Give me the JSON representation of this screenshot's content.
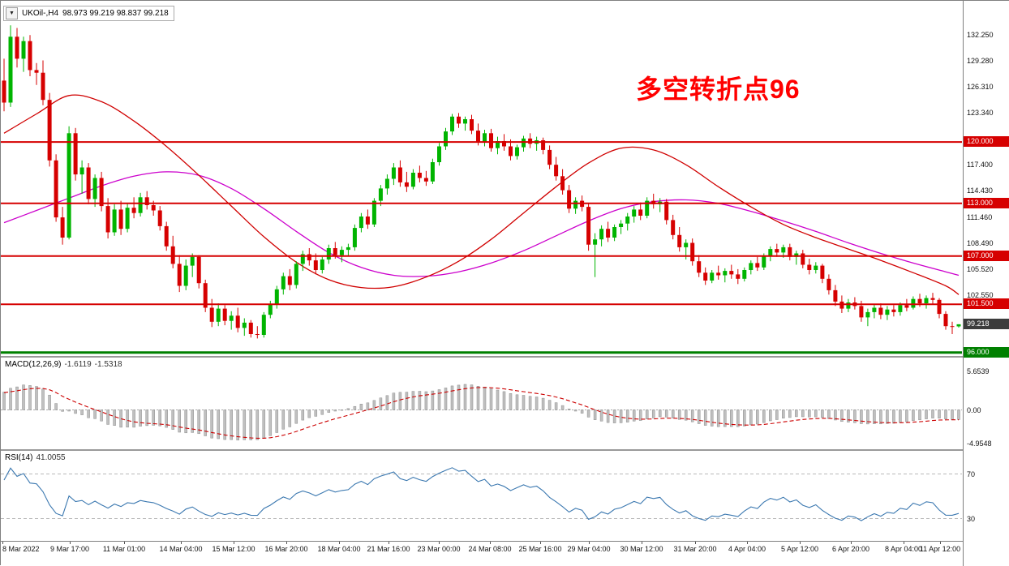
{
  "window": {
    "legend_symbol": "UKOil-,H4",
    "legend_ohlc": "98.973 99.219 98.837 99.218"
  },
  "annotation": {
    "text": "多空转折点96",
    "color": "#ff0000"
  },
  "chart_data": {
    "type": "candlestick",
    "title": "UKOil- H4 chart with MACD and RSI",
    "symbol": "UKOil-",
    "timeframe": "H4",
    "ohlc_current": {
      "open": 98.973,
      "high": 99.219,
      "low": 98.837,
      "close": 99.218
    },
    "price_range": [
      95.6,
      136.1
    ],
    "colors": {
      "bull": "#00b400",
      "bear": "#d60000",
      "ma_fast": "#d00000",
      "ma_slow": "#cc00cc",
      "hline": "#d60000",
      "support": "#008000",
      "bid_badge": "#3c3c3c",
      "hline_badge": "#d60000",
      "support_badge": "#008000",
      "macd_hist": "#c0c0c0",
      "macd_hist_border": "#8d8d8d",
      "macd_signal": "#cc0000",
      "rsi_line": "#3b78b0",
      "level_dash": "#b8b8b8",
      "annotation": "#ff0000"
    },
    "price_axis_labels": [
      {
        "v": 132.25,
        "t": "132.250"
      },
      {
        "v": 129.28,
        "t": "129.280"
      },
      {
        "v": 126.31,
        "t": "126.310"
      },
      {
        "v": 123.34,
        "t": "123.340"
      },
      {
        "v": 117.4,
        "t": "117.400"
      },
      {
        "v": 114.43,
        "t": "114.430"
      },
      {
        "v": 111.46,
        "t": "111.460"
      },
      {
        "v": 108.49,
        "t": "108.490"
      },
      {
        "v": 105.52,
        "t": "105.520"
      },
      {
        "v": 102.55,
        "t": "102.550"
      }
    ],
    "hlines": [
      {
        "v": 120.0,
        "t": "120.000"
      },
      {
        "v": 113.0,
        "t": "113.000"
      },
      {
        "v": 107.0,
        "t": "107.000"
      },
      {
        "v": 101.5,
        "t": "101.500"
      }
    ],
    "support_line": {
      "v": 96.0,
      "t": "96.000"
    },
    "bid": {
      "v": 99.218,
      "t": "99.218"
    },
    "candles": [
      [
        127.0,
        129.5,
        123.5,
        124.5
      ],
      [
        124.5,
        133.3,
        124.0,
        132.0
      ],
      [
        132.0,
        133.0,
        128.5,
        129.5
      ],
      [
        129.5,
        132.0,
        128.0,
        131.5
      ],
      [
        131.5,
        132.2,
        127.5,
        128.2
      ],
      [
        128.2,
        129.0,
        126.5,
        127.9
      ],
      [
        127.9,
        129.3,
        124.2,
        124.8
      ],
      [
        124.8,
        125.6,
        117.2,
        117.9
      ],
      [
        117.9,
        118.6,
        110.9,
        111.4
      ],
      [
        111.4,
        112.6,
        108.3,
        109.1
      ],
      [
        109.1,
        121.8,
        108.9,
        121.0
      ],
      [
        121.0,
        121.6,
        115.6,
        116.3
      ],
      [
        116.3,
        117.9,
        114.1,
        117.1
      ],
      [
        117.1,
        117.6,
        112.9,
        113.5
      ],
      [
        113.5,
        116.3,
        112.6,
        115.9
      ],
      [
        115.9,
        116.6,
        112.1,
        112.7
      ],
      [
        112.7,
        113.6,
        109.0,
        109.7
      ],
      [
        109.7,
        112.9,
        109.3,
        112.3
      ],
      [
        112.3,
        113.3,
        109.4,
        110.1
      ],
      [
        110.1,
        113.0,
        109.7,
        112.5
      ],
      [
        112.5,
        113.7,
        111.3,
        111.9
      ],
      [
        111.9,
        114.2,
        111.5,
        113.7
      ],
      [
        113.7,
        114.4,
        112.3,
        112.8
      ],
      [
        112.8,
        113.3,
        111.6,
        112.2
      ],
      [
        112.2,
        112.7,
        109.9,
        110.4
      ],
      [
        110.4,
        110.9,
        107.6,
        108.1
      ],
      [
        108.1,
        109.3,
        105.6,
        106.1
      ],
      [
        106.1,
        107.1,
        102.9,
        103.6
      ],
      [
        103.6,
        106.6,
        103.1,
        105.9
      ],
      [
        105.9,
        107.3,
        104.6,
        106.9
      ],
      [
        106.9,
        107.1,
        103.3,
        103.9
      ],
      [
        103.9,
        104.3,
        100.6,
        101.1
      ],
      [
        101.1,
        102.1,
        98.9,
        99.5
      ],
      [
        99.5,
        101.6,
        99.0,
        101.0
      ],
      [
        101.0,
        101.4,
        99.1,
        99.6
      ],
      [
        99.6,
        100.7,
        98.6,
        100.2
      ],
      [
        100.2,
        101.1,
        98.3,
        98.8
      ],
      [
        98.8,
        99.9,
        97.9,
        99.4
      ],
      [
        99.4,
        99.7,
        97.7,
        98.1
      ],
      [
        98.1,
        99.0,
        97.6,
        98.0
      ],
      [
        98.0,
        100.6,
        97.7,
        100.3
      ],
      [
        100.3,
        101.9,
        99.9,
        101.5
      ],
      [
        101.5,
        103.6,
        101.0,
        103.2
      ],
      [
        103.2,
        105.1,
        102.6,
        104.7
      ],
      [
        104.7,
        105.5,
        103.1,
        103.7
      ],
      [
        103.7,
        106.4,
        103.3,
        106.1
      ],
      [
        106.1,
        107.6,
        105.3,
        107.2
      ],
      [
        107.2,
        107.9,
        105.9,
        106.5
      ],
      [
        106.5,
        107.3,
        104.9,
        105.4
      ],
      [
        105.4,
        106.9,
        105.0,
        106.6
      ],
      [
        106.6,
        108.3,
        106.1,
        107.9
      ],
      [
        107.9,
        108.6,
        106.7,
        107.1
      ],
      [
        107.1,
        108.1,
        106.3,
        107.7
      ],
      [
        107.7,
        108.4,
        107.0,
        108.0
      ],
      [
        108.0,
        110.6,
        107.6,
        110.2
      ],
      [
        110.2,
        111.9,
        109.7,
        111.5
      ],
      [
        111.5,
        112.3,
        110.1,
        110.6
      ],
      [
        110.6,
        113.6,
        110.3,
        113.3
      ],
      [
        113.3,
        115.1,
        112.7,
        114.7
      ],
      [
        114.7,
        116.3,
        114.0,
        115.8
      ],
      [
        115.8,
        117.6,
        115.1,
        117.1
      ],
      [
        117.1,
        117.9,
        114.9,
        115.4
      ],
      [
        115.4,
        116.6,
        114.3,
        114.9
      ],
      [
        114.9,
        116.9,
        114.6,
        116.5
      ],
      [
        116.5,
        117.3,
        115.4,
        115.9
      ],
      [
        115.9,
        116.7,
        115.0,
        115.5
      ],
      [
        115.5,
        118.1,
        115.2,
        117.7
      ],
      [
        117.7,
        119.9,
        117.3,
        119.5
      ],
      [
        119.5,
        121.6,
        119.1,
        121.2
      ],
      [
        121.2,
        123.2,
        120.8,
        122.9
      ],
      [
        122.9,
        123.3,
        121.6,
        122.1
      ],
      [
        122.1,
        122.9,
        121.3,
        122.6
      ],
      [
        122.6,
        123.1,
        120.9,
        121.3
      ],
      [
        121.3,
        122.1,
        119.6,
        120.0
      ],
      [
        120.0,
        121.4,
        119.5,
        121.0
      ],
      [
        121.0,
        121.5,
        118.9,
        119.3
      ],
      [
        119.3,
        120.6,
        118.6,
        120.1
      ],
      [
        120.1,
        120.9,
        119.0,
        119.5
      ],
      [
        119.5,
        120.3,
        117.9,
        118.4
      ],
      [
        118.4,
        119.7,
        118.0,
        119.4
      ],
      [
        119.4,
        120.7,
        118.9,
        120.4
      ],
      [
        120.4,
        121.0,
        119.3,
        119.8
      ],
      [
        119.8,
        120.6,
        119.0,
        120.2
      ],
      [
        120.2,
        120.5,
        118.6,
        119.1
      ],
      [
        119.1,
        119.6,
        116.9,
        117.4
      ],
      [
        117.4,
        118.3,
        115.6,
        116.1
      ],
      [
        116.1,
        116.9,
        114.0,
        114.5
      ],
      [
        114.5,
        115.1,
        111.9,
        112.4
      ],
      [
        112.4,
        113.7,
        111.8,
        113.3
      ],
      [
        113.3,
        113.9,
        112.1,
        112.6
      ],
      [
        112.6,
        113.0,
        107.6,
        108.3
      ],
      [
        108.3,
        109.6,
        104.6,
        108.9
      ],
      [
        108.9,
        110.5,
        108.1,
        110.1
      ],
      [
        110.1,
        110.9,
        108.6,
        109.1
      ],
      [
        109.1,
        110.6,
        108.7,
        110.3
      ],
      [
        110.3,
        111.1,
        109.5,
        110.7
      ],
      [
        110.7,
        111.9,
        109.9,
        111.5
      ],
      [
        111.5,
        112.7,
        110.8,
        112.3
      ],
      [
        112.3,
        113.1,
        111.1,
        111.6
      ],
      [
        111.6,
        113.7,
        111.3,
        113.3
      ],
      [
        113.3,
        114.1,
        112.4,
        112.9
      ],
      [
        112.9,
        113.6,
        112.0,
        113.2
      ],
      [
        113.2,
        113.5,
        110.6,
        111.1
      ],
      [
        111.1,
        111.7,
        108.9,
        109.4
      ],
      [
        109.4,
        110.3,
        107.5,
        108.0
      ],
      [
        108.0,
        108.9,
        106.6,
        108.5
      ],
      [
        108.5,
        109.0,
        105.9,
        106.4
      ],
      [
        106.4,
        107.1,
        104.6,
        105.1
      ],
      [
        105.1,
        105.7,
        103.7,
        104.2
      ],
      [
        104.2,
        105.4,
        103.9,
        105.1
      ],
      [
        105.1,
        105.9,
        104.3,
        104.8
      ],
      [
        104.8,
        105.6,
        104.0,
        105.3
      ],
      [
        105.3,
        106.0,
        104.4,
        104.9
      ],
      [
        104.9,
        105.5,
        103.8,
        104.4
      ],
      [
        104.4,
        105.7,
        104.1,
        105.4
      ],
      [
        105.4,
        106.5,
        104.9,
        106.2
      ],
      [
        106.2,
        106.9,
        105.3,
        105.7
      ],
      [
        105.7,
        107.3,
        105.4,
        107.0
      ],
      [
        107.0,
        108.1,
        106.4,
        107.8
      ],
      [
        107.8,
        108.4,
        106.9,
        107.4
      ],
      [
        107.4,
        108.3,
        106.8,
        108.0
      ],
      [
        108.0,
        108.4,
        106.5,
        106.9
      ],
      [
        106.9,
        107.6,
        106.0,
        107.3
      ],
      [
        107.3,
        107.7,
        105.6,
        106.0
      ],
      [
        106.0,
        106.7,
        104.9,
        105.4
      ],
      [
        105.4,
        106.3,
        105.0,
        105.9
      ],
      [
        105.9,
        106.1,
        103.9,
        104.4
      ],
      [
        104.4,
        104.9,
        102.6,
        103.1
      ],
      [
        103.1,
        103.7,
        101.3,
        101.8
      ],
      [
        101.8,
        102.5,
        100.5,
        101.0
      ],
      [
        101.0,
        102.1,
        100.6,
        101.7
      ],
      [
        101.7,
        102.3,
        100.9,
        101.3
      ],
      [
        101.3,
        101.9,
        99.5,
        100.0
      ],
      [
        100.0,
        101.0,
        99.0,
        100.6
      ],
      [
        100.6,
        101.5,
        99.9,
        101.1
      ],
      [
        101.1,
        101.6,
        99.8,
        100.3
      ],
      [
        100.3,
        101.3,
        99.7,
        100.9
      ],
      [
        100.9,
        101.4,
        100.1,
        100.6
      ],
      [
        100.6,
        101.7,
        100.2,
        101.4
      ],
      [
        101.4,
        102.1,
        100.7,
        101.1
      ],
      [
        101.1,
        102.4,
        100.9,
        102.1
      ],
      [
        102.1,
        102.7,
        101.2,
        101.6
      ],
      [
        101.6,
        102.5,
        101.0,
        102.2
      ],
      [
        102.2,
        102.8,
        101.5,
        102.0
      ],
      [
        102.0,
        102.2,
        99.9,
        100.4
      ],
      [
        100.4,
        100.7,
        98.6,
        99.0
      ],
      [
        99.0,
        99.5,
        98.1,
        98.97
      ],
      [
        98.973,
        99.219,
        98.837,
        99.218
      ]
    ],
    "ma_fast_samples": [
      [
        0,
        121.0
      ],
      [
        5,
        123.2
      ],
      [
        10,
        125.3
      ],
      [
        15,
        124.6
      ],
      [
        20,
        122.4
      ],
      [
        25,
        119.5
      ],
      [
        30,
        116.2
      ],
      [
        35,
        112.7
      ],
      [
        40,
        109.2
      ],
      [
        45,
        106.3
      ],
      [
        50,
        104.3
      ],
      [
        55,
        103.4
      ],
      [
        60,
        103.5
      ],
      [
        65,
        104.6
      ],
      [
        70,
        106.4
      ],
      [
        75,
        108.9
      ],
      [
        80,
        111.9
      ],
      [
        85,
        114.9
      ],
      [
        90,
        117.6
      ],
      [
        95,
        119.3
      ],
      [
        100,
        119.1
      ],
      [
        105,
        117.4
      ],
      [
        110,
        114.9
      ],
      [
        115,
        112.6
      ],
      [
        120,
        110.6
      ],
      [
        125,
        109.1
      ],
      [
        130,
        107.8
      ],
      [
        135,
        106.5
      ],
      [
        140,
        105.1
      ],
      [
        145,
        103.6
      ],
      [
        147,
        102.6
      ]
    ],
    "ma_slow_samples": [
      [
        0,
        110.8
      ],
      [
        5,
        112.2
      ],
      [
        10,
        113.6
      ],
      [
        15,
        115.0
      ],
      [
        20,
        116.1
      ],
      [
        25,
        116.6
      ],
      [
        30,
        116.2
      ],
      [
        35,
        114.7
      ],
      [
        40,
        112.4
      ],
      [
        45,
        109.8
      ],
      [
        50,
        107.4
      ],
      [
        55,
        105.7
      ],
      [
        60,
        104.8
      ],
      [
        65,
        104.7
      ],
      [
        70,
        105.2
      ],
      [
        75,
        106.2
      ],
      [
        80,
        107.6
      ],
      [
        85,
        109.3
      ],
      [
        90,
        111.0
      ],
      [
        95,
        112.4
      ],
      [
        100,
        113.2
      ],
      [
        105,
        113.4
      ],
      [
        110,
        113.0
      ],
      [
        115,
        112.1
      ],
      [
        120,
        111.0
      ],
      [
        125,
        109.8
      ],
      [
        130,
        108.5
      ],
      [
        135,
        107.3
      ],
      [
        140,
        106.2
      ],
      [
        145,
        105.2
      ],
      [
        147,
        104.8
      ]
    ],
    "macd": {
      "label": "MACD(12,26,9)",
      "value_main": "-1.6119",
      "value_signal": "-1.5318",
      "params": [
        12,
        26,
        9
      ],
      "range": [
        -5.8,
        7.6
      ],
      "axis_labels": [
        {
          "v": 5.6539,
          "t": "5.6539"
        },
        {
          "v": 0,
          "t": "0.00"
        },
        {
          "v": -4.9548,
          "t": "-4.9548"
        }
      ]
    },
    "rsi": {
      "label": "RSI(14)",
      "value": "41.0055",
      "params": 14,
      "range": [
        10,
        90
      ],
      "levels": [
        {
          "v": 70,
          "t": "70"
        },
        {
          "v": 30,
          "t": "30"
        }
      ]
    },
    "time_labels": [
      {
        "t": "8 Mar 2022",
        "f": 0.002
      },
      {
        "t": "9 Mar 17:00",
        "f": 0.072
      },
      {
        "t": "11 Mar 01:00",
        "f": 0.128
      },
      {
        "t": "14 Mar 04:00",
        "f": 0.187
      },
      {
        "t": "15 Mar 12:00",
        "f": 0.242
      },
      {
        "t": "16 Mar 20:00",
        "f": 0.297
      },
      {
        "t": "18 Mar 04:00",
        "f": 0.352
      },
      {
        "t": "21 Mar 16:00",
        "f": 0.403
      },
      {
        "t": "23 Mar 00:00",
        "f": 0.456
      },
      {
        "t": "24 Mar 08:00",
        "f": 0.509
      },
      {
        "t": "25 Mar 16:00",
        "f": 0.561
      },
      {
        "t": "29 Mar 04:00",
        "f": 0.612
      },
      {
        "t": "30 Mar 12:00",
        "f": 0.667
      },
      {
        "t": "31 Mar 20:00",
        "f": 0.722
      },
      {
        "t": "4 Apr 04:00",
        "f": 0.776
      },
      {
        "t": "5 Apr 12:00",
        "f": 0.831
      },
      {
        "t": "6 Apr 20:00",
        "f": 0.884
      },
      {
        "t": "8 Apr 04:00",
        "f": 0.939
      },
      {
        "t": "11 Apr 12:00",
        "f": 0.977
      }
    ]
  }
}
